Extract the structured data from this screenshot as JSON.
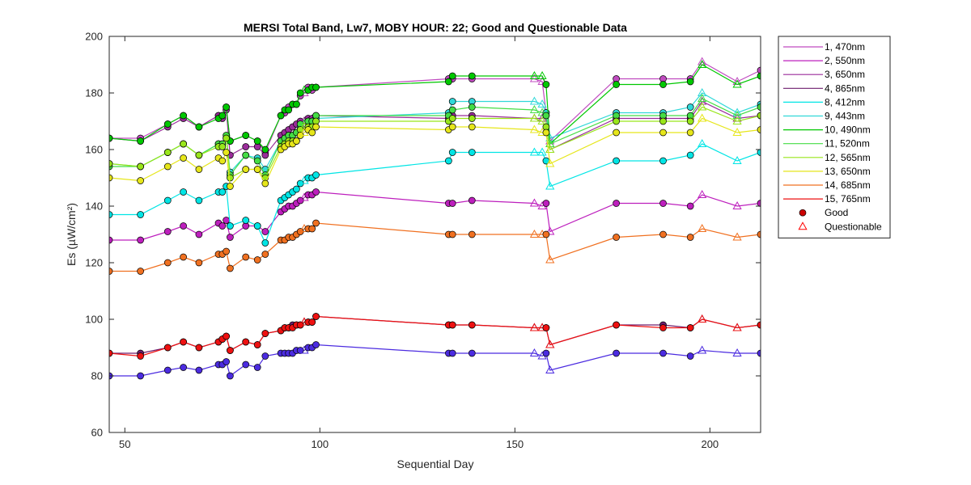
{
  "chart_data": {
    "type": "line",
    "title": "MERSI Total Band,  Lw7, MOBY HOUR: 22;  Good and Questionable Data",
    "xlabel": "Sequential Day",
    "ylabel": "Es (µW/cm²)",
    "xlim": [
      46,
      213
    ],
    "ylim": [
      60,
      200
    ],
    "xticks": [
      50,
      100,
      150,
      200
    ],
    "yticks": [
      60,
      80,
      100,
      120,
      140,
      160,
      180,
      200
    ],
    "grid": false,
    "legend_position": "outside-right",
    "legend_markers": [
      {
        "label": "Good",
        "marker": "filled-circle",
        "color": "#cc0000"
      },
      {
        "label": "Questionable",
        "marker": "open-triangle",
        "color": "#ff0000"
      }
    ],
    "x": [
      46,
      54,
      61,
      65,
      69,
      74,
      75,
      76,
      77,
      81,
      84,
      86,
      90,
      91,
      92,
      93,
      94,
      95,
      96,
      97,
      98,
      99,
      133,
      134,
      139,
      155,
      157,
      158,
      159,
      176,
      188,
      195,
      198,
      207,
      213
    ],
    "questionable_x": [
      96,
      155,
      157,
      159,
      198,
      207
    ],
    "series": [
      {
        "name": "1, 470nm",
        "color": "#c04bc0",
        "values": [
          164,
          164,
          169,
          172,
          168,
          172,
          172,
          175,
          163,
          165,
          163,
          159,
          172,
          173,
          175,
          176,
          176,
          179,
          180,
          182,
          181,
          182,
          185,
          185,
          185,
          185,
          184,
          173,
          163,
          185,
          185,
          185,
          191,
          184,
          188
        ]
      },
      {
        "name": "2, 550nm",
        "color": "#bd1fbd",
        "values": [
          128,
          128,
          131,
          133,
          130,
          134,
          133,
          135,
          129,
          133,
          133,
          131,
          138,
          139,
          140,
          140,
          141,
          142,
          143,
          144,
          144,
          145,
          141,
          141,
          142,
          141,
          140,
          141,
          131,
          141,
          141,
          140,
          144,
          140,
          141
        ]
      },
      {
        "name": "3, 650nm",
        "color": "#9a2c9a",
        "values": [
          164,
          163,
          168,
          171,
          168,
          172,
          171,
          174,
          158,
          161,
          161,
          158,
          165,
          166,
          167,
          168,
          169,
          170,
          170,
          171,
          171,
          172,
          171,
          172,
          172,
          171,
          171,
          172,
          160,
          171,
          171,
          171,
          177,
          171,
          172
        ]
      },
      {
        "name": "4, 865nm",
        "color": "#6e1e6e",
        "values": [
          88,
          88,
          90,
          92,
          90,
          92,
          93,
          94,
          89,
          92,
          91,
          95,
          96,
          97,
          97,
          98,
          98,
          98,
          99,
          99,
          99,
          101,
          98,
          98,
          98,
          97,
          97,
          97,
          91,
          98,
          98,
          97,
          100,
          97,
          98
        ]
      },
      {
        "name": "8, 412nm",
        "color": "#00e5e5",
        "values": [
          137,
          137,
          142,
          145,
          142,
          145,
          145,
          147,
          133,
          135,
          133,
          127,
          142,
          143,
          144,
          145,
          146,
          148,
          149,
          150,
          150,
          151,
          156,
          159,
          159,
          159,
          159,
          156,
          147,
          156,
          156,
          158,
          162,
          156,
          159
        ]
      },
      {
        "name": "9, 443nm",
        "color": "#30d8d8",
        "values": [
          155,
          154,
          159,
          162,
          158,
          162,
          162,
          164,
          152,
          158,
          157,
          153,
          163,
          164,
          165,
          165,
          166,
          168,
          169,
          170,
          170,
          171,
          173,
          177,
          177,
          177,
          176,
          173,
          164,
          173,
          173,
          175,
          180,
          173,
          176
        ]
      },
      {
        "name": "10, 490nm",
        "color": "#00c800",
        "values": [
          164,
          163,
          169,
          172,
          168,
          171,
          172,
          175,
          163,
          165,
          163,
          160,
          172,
          174,
          174,
          176,
          176,
          180,
          181,
          181,
          182,
          182,
          184,
          186,
          186,
          186,
          186,
          183,
          162,
          183,
          183,
          184,
          190,
          183,
          186
        ]
      },
      {
        "name": "11, 520nm",
        "color": "#44dd44",
        "values": [
          154,
          154,
          159,
          162,
          158,
          162,
          162,
          165,
          151,
          158,
          156,
          151,
          163,
          164,
          165,
          165,
          166,
          169,
          169,
          170,
          170,
          172,
          172,
          174,
          175,
          174,
          173,
          172,
          162,
          172,
          172,
          172,
          178,
          172,
          175
        ]
      },
      {
        "name": "12, 565nm",
        "color": "#99e61a",
        "values": [
          155,
          154,
          159,
          162,
          158,
          161,
          161,
          164,
          150,
          153,
          153,
          150,
          161,
          162,
          163,
          163,
          163,
          167,
          168,
          168,
          168,
          170,
          170,
          171,
          171,
          171,
          170,
          168,
          160,
          170,
          170,
          170,
          175,
          170,
          172
        ]
      },
      {
        "name": "13, 650nm",
        "color": "#e6e61a",
        "values": [
          150,
          149,
          154,
          157,
          153,
          157,
          156,
          159,
          147,
          153,
          153,
          148,
          160,
          161,
          162,
          162,
          163,
          165,
          166,
          167,
          166,
          168,
          167,
          168,
          168,
          167,
          166,
          166,
          155,
          166,
          166,
          166,
          171,
          166,
          167
        ]
      },
      {
        "name": "14, 685nm",
        "color": "#f07020",
        "values": [
          117,
          117,
          120,
          122,
          120,
          123,
          123,
          124,
          118,
          122,
          121,
          123,
          128,
          128,
          129,
          129,
          130,
          131,
          132,
          132,
          132,
          134,
          130,
          130,
          130,
          130,
          130,
          130,
          121,
          129,
          130,
          129,
          132,
          129,
          130
        ]
      },
      {
        "name": "15, 765nm",
        "color": "#ee1111",
        "values": [
          88,
          87,
          90,
          92,
          90,
          92,
          93,
          94,
          89,
          92,
          91,
          95,
          96,
          97,
          97,
          97,
          98,
          98,
          99,
          99,
          99,
          101,
          98,
          98,
          98,
          97,
          97,
          97,
          91,
          98,
          97,
          97,
          100,
          97,
          98
        ]
      },
      {
        "name": "",
        "color": "#4b2be0",
        "values": [
          80,
          80,
          82,
          83,
          82,
          84,
          84,
          85,
          80,
          84,
          83,
          87,
          88,
          88,
          88,
          88,
          89,
          89,
          89,
          90,
          90,
          91,
          88,
          88,
          88,
          88,
          87,
          88,
          82,
          88,
          88,
          87,
          89,
          88,
          88
        ]
      }
    ]
  }
}
